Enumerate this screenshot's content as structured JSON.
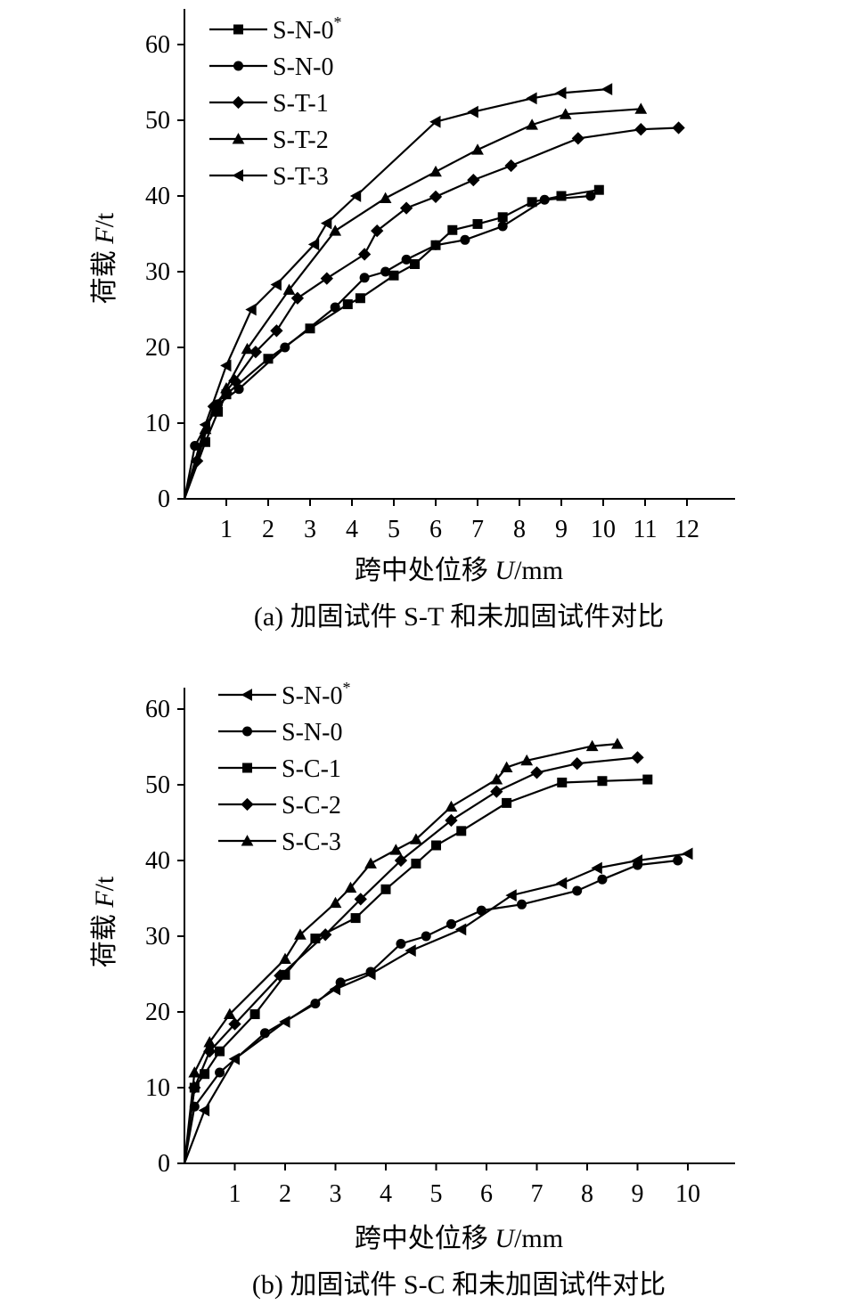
{
  "chart_data": [
    {
      "type": "line",
      "caption": "(a) 加固试件 S-T 和未加固试件对比",
      "xlabel_prefix": "跨中处位移 ",
      "xlabel_var": "U",
      "xlabel_unit": "/mm",
      "ylabel_prefix": "荷载 ",
      "ylabel_var": "F",
      "ylabel_unit": "/t",
      "xlim": [
        0,
        13
      ],
      "ylim": [
        0,
        60
      ],
      "xticks": [
        1,
        2,
        3,
        4,
        5,
        6,
        7,
        8,
        9,
        10,
        11,
        12
      ],
      "yticks": [
        0,
        10,
        20,
        30,
        40,
        50,
        60
      ],
      "legend_position": "top-left",
      "series": [
        {
          "name": "S-N-0",
          "name_sup": "*",
          "marker": "square",
          "x": [
            0,
            0.5,
            0.8,
            1.0,
            2.0,
            3.0,
            3.9,
            4.2,
            5.0,
            5.5,
            6.0,
            6.4,
            7.0,
            7.6,
            8.3,
            9.0,
            9.9
          ],
          "y": [
            0,
            7.5,
            11.5,
            13.8,
            18.5,
            22.5,
            25.7,
            26.5,
            29.5,
            31.0,
            33.5,
            35.5,
            36.3,
            37.2,
            39.2,
            40.0,
            40.8
          ]
        },
        {
          "name": "S-N-0",
          "name_sup": "",
          "marker": "circle",
          "x": [
            0,
            0.25,
            0.8,
            1.3,
            2.4,
            3.6,
            4.3,
            4.8,
            5.3,
            6.0,
            6.7,
            7.6,
            8.6,
            9.7
          ],
          "y": [
            0,
            7.0,
            12.5,
            14.5,
            20.0,
            25.3,
            29.2,
            30.0,
            31.6,
            33.5,
            34.2,
            36.0,
            39.5,
            40.0
          ]
        },
        {
          "name": "S-T-1",
          "name_sup": "",
          "marker": "diamond",
          "x": [
            0,
            0.3,
            0.7,
            1.2,
            1.7,
            2.2,
            2.7,
            3.4,
            4.3,
            4.6,
            5.3,
            6.0,
            6.9,
            7.8,
            9.4,
            10.9,
            11.8
          ],
          "y": [
            0,
            5.0,
            12.2,
            15.6,
            19.4,
            22.2,
            26.5,
            29.1,
            32.3,
            35.4,
            38.4,
            39.9,
            42.1,
            44.0,
            47.6,
            48.8,
            49.0
          ]
        },
        {
          "name": "S-T-2",
          "name_sup": "",
          "marker": "triangle-up",
          "x": [
            0,
            0.5,
            1.0,
            1.5,
            2.5,
            3.6,
            4.8,
            6.0,
            7.0,
            8.3,
            9.1,
            10.9
          ],
          "y": [
            0,
            9.2,
            14.6,
            19.8,
            27.6,
            35.4,
            39.7,
            43.2,
            46.1,
            49.4,
            50.8,
            51.5
          ]
        },
        {
          "name": "S-T-3",
          "name_sup": "",
          "marker": "triangle-left",
          "x": [
            0,
            0.5,
            1.0,
            1.6,
            2.2,
            3.1,
            3.4,
            4.1,
            6.0,
            6.9,
            8.3,
            9.0,
            10.1
          ],
          "y": [
            0,
            9.8,
            17.6,
            25.0,
            28.3,
            33.6,
            36.4,
            40.0,
            49.8,
            51.1,
            52.9,
            53.6,
            54.1
          ]
        }
      ]
    },
    {
      "type": "line",
      "caption": "(b) 加固试件 S-C 和未加固试件对比",
      "xlabel_prefix": "跨中处位移 ",
      "xlabel_var": "U",
      "xlabel_unit": "/mm",
      "ylabel_prefix": "荷载 ",
      "ylabel_var": "F",
      "ylabel_unit": "/t",
      "xlim": [
        0,
        11
      ],
      "ylim": [
        0,
        60
      ],
      "xticks": [
        1,
        2,
        3,
        4,
        5,
        6,
        7,
        8,
        9,
        10
      ],
      "yticks": [
        0,
        10,
        20,
        30,
        40,
        50,
        60
      ],
      "legend_position": "top-left",
      "series": [
        {
          "name": "S-N-0",
          "name_sup": "*",
          "marker": "triangle-left",
          "x": [
            0,
            0.4,
            1.0,
            2.0,
            3.0,
            3.7,
            4.5,
            5.5,
            6.5,
            7.5,
            8.2,
            9.0,
            10.0
          ],
          "y": [
            0,
            7.0,
            13.8,
            18.7,
            23.0,
            25.0,
            28.1,
            30.9,
            35.4,
            37.0,
            39.0,
            40.0,
            40.9
          ]
        },
        {
          "name": "S-N-0",
          "name_sup": "",
          "marker": "circle",
          "x": [
            0,
            0.2,
            0.7,
            1.6,
            2.6,
            3.1,
            3.7,
            4.3,
            4.8,
            5.3,
            5.9,
            6.7,
            7.8,
            8.3,
            9.0,
            9.8
          ],
          "y": [
            0,
            7.5,
            12.0,
            17.2,
            21.1,
            23.9,
            25.3,
            29.0,
            30.0,
            31.6,
            33.4,
            34.2,
            36.0,
            37.5,
            39.4,
            40.0
          ]
        },
        {
          "name": "S-C-1",
          "name_sup": "",
          "marker": "square",
          "x": [
            0,
            0.2,
            0.4,
            0.7,
            1.4,
            2.0,
            2.6,
            3.4,
            4.0,
            4.6,
            5.0,
            5.5,
            6.4,
            7.5,
            8.3,
            9.2
          ],
          "y": [
            0,
            10.0,
            11.8,
            14.8,
            19.7,
            24.9,
            29.7,
            32.4,
            36.2,
            39.6,
            42.0,
            43.9,
            47.6,
            50.3,
            50.5,
            50.7
          ]
        },
        {
          "name": "S-C-2",
          "name_sup": "",
          "marker": "diamond",
          "x": [
            0,
            0.2,
            0.5,
            1.0,
            1.9,
            2.8,
            3.5,
            4.3,
            5.3,
            6.2,
            7.0,
            7.8,
            9.0
          ],
          "y": [
            0,
            10.0,
            14.8,
            18.4,
            24.8,
            30.2,
            34.9,
            40.0,
            45.3,
            49.1,
            51.6,
            52.8,
            53.6
          ]
        },
        {
          "name": "S-C-3",
          "name_sup": "",
          "marker": "triangle-up",
          "x": [
            0,
            0.2,
            0.5,
            0.9,
            2.0,
            2.3,
            3.0,
            3.3,
            3.7,
            4.2,
            4.6,
            5.3,
            6.2,
            6.4,
            6.8,
            8.1,
            8.6
          ],
          "y": [
            0,
            12.0,
            16.0,
            19.7,
            27.0,
            30.2,
            34.4,
            36.4,
            39.6,
            41.4,
            42.8,
            47.1,
            50.7,
            52.3,
            53.2,
            55.1,
            55.4
          ]
        }
      ]
    }
  ]
}
